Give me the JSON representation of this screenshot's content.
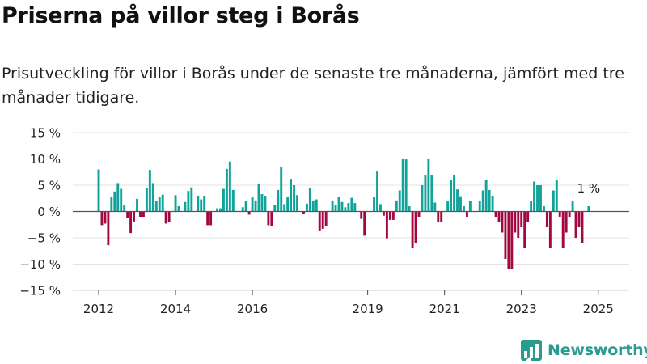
{
  "title": "Priserna på villor steg i Borås",
  "subtitle": "Prisutveckling för villor i Borås under de senaste tre månaderna, jämfört med tre månader tidigare.",
  "brand": "Newsworthy",
  "colors": {
    "positive": "#0fa39a",
    "negative": "#a3073f",
    "brand": "#2c9b8f"
  },
  "chart_data": {
    "type": "bar",
    "title": "Priserna på villor steg i Borås",
    "subtitle": "Prisutveckling för villor i Borås under de senaste tre månaderna, jämfört med tre månader tidigare.",
    "ylim": [
      -15,
      15
    ],
    "y_ticks": [
      15,
      10,
      5,
      0,
      -5,
      -10,
      -15
    ],
    "y_tick_labels": [
      "15 %",
      "10 %",
      "5 %",
      "0 %",
      "−5 %",
      "−10 %",
      "−15 %"
    ],
    "x_ticks": [
      2012,
      2014,
      2016,
      2019,
      2021,
      2023,
      2025
    ],
    "x_tick_labels": [
      "2012",
      "2014",
      "2016",
      "2019",
      "2021",
      "2023",
      "2025"
    ],
    "grid": true,
    "last_value_label": "1 %",
    "x_start": "2012-01",
    "values": [
      8,
      -2.6,
      -2.3,
      -6.4,
      2.7,
      3.8,
      5.4,
      4.3,
      1.3,
      -1.3,
      -4.1,
      -1.9,
      2.4,
      -1,
      -1,
      4.5,
      7.9,
      5.4,
      2,
      2.7,
      3.2,
      -2.3,
      -2,
      0,
      3.1,
      1,
      0,
      1.8,
      3.9,
      4.6,
      0,
      3,
      2.3,
      3,
      -2.6,
      -2.6,
      0,
      0.6,
      0.6,
      4.3,
      8.1,
      9.5,
      4.1,
      0,
      0,
      0.8,
      2,
      -0.6,
      2.7,
      2.1,
      5.3,
      3.3,
      3,
      -2.6,
      -2.8,
      1.2,
      4.1,
      8.4,
      1.4,
      2.8,
      6.2,
      5,
      3.1,
      0,
      -0.5,
      1.5,
      4.4,
      2.1,
      2.3,
      -3.6,
      -3.3,
      -2.7,
      0,
      2.1,
      1.3,
      2.8,
      1.8,
      0.8,
      1.6,
      2.6,
      1.6,
      0,
      -1.4,
      -4.6,
      0,
      0,
      2.7,
      7.6,
      1.4,
      -0.8,
      -5.1,
      -1.6,
      -1.6,
      2.1,
      4,
      10,
      9.9,
      1,
      -7,
      -6,
      -1,
      5,
      7,
      10,
      7,
      1.7,
      -2,
      -2,
      0,
      2,
      6,
      7,
      4.2,
      2.9,
      1,
      -1,
      2,
      0,
      0,
      2,
      4,
      6,
      4.1,
      3,
      -1,
      -2,
      -4,
      -9,
      -11,
      -11,
      -4,
      -5,
      -3,
      -7,
      -2,
      2,
      5.7,
      5,
      5,
      1,
      -3,
      -7,
      4,
      6,
      -1,
      -7,
      -4,
      -1,
      2,
      -5,
      -3,
      -6,
      0,
      1
    ]
  }
}
